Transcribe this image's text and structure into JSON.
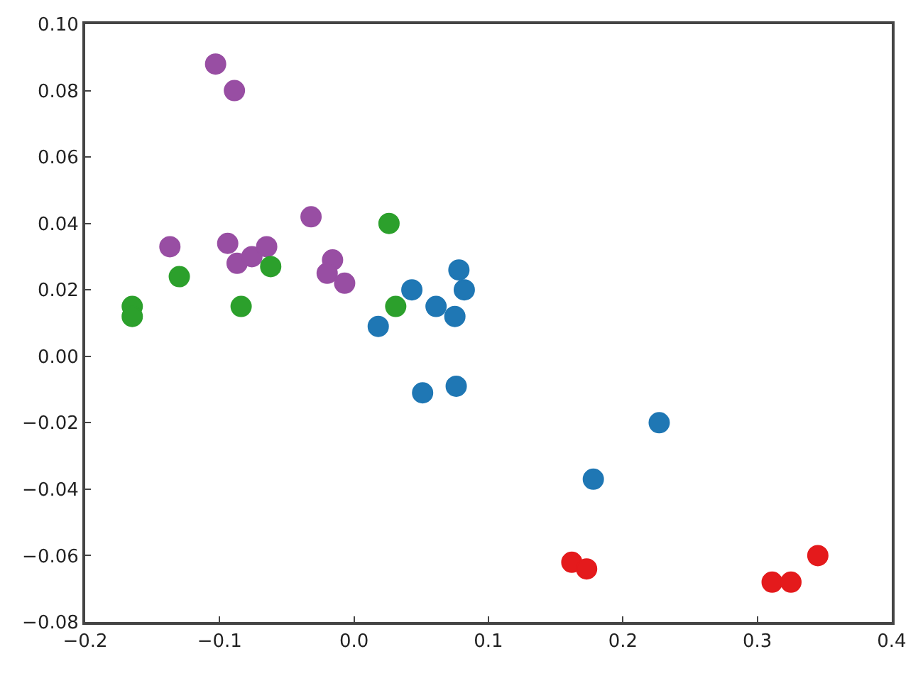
{
  "chart_data": {
    "type": "scatter",
    "marker": "circle",
    "xlim": [
      -0.2,
      0.4
    ],
    "xticks": [
      {
        "value": -0.2,
        "label": "−0.2"
      },
      {
        "value": -0.1,
        "label": "−0.1"
      },
      {
        "value": 0,
        "label": "0.0"
      },
      0.1,
      0.2,
      0.3,
      0.4
    ],
    "ylim": [
      -0.08,
      0.1
    ],
    "yticks": [
      {
        "value": -0.08,
        "label": "−0.08"
      },
      {
        "value": -0.06,
        "label": "−0.06"
      },
      {
        "value": -0.04,
        "label": "−0.04"
      },
      {
        "value": -0.02,
        "label": "−0.02"
      },
      {
        "value": 0,
        "label": "0.00"
      },
      0.02,
      0.04,
      0.06,
      0.08,
      {
        "value": 0.1,
        "label": "0.10"
      }
    ],
    "series": [
      {
        "color": "#984ea3",
        "x": [
          -0.103,
          -0.089,
          -0.137,
          -0.094,
          -0.087,
          -0.076,
          -0.065,
          -0.032,
          -0.016,
          -0.02,
          -0.007
        ],
        "values": [
          0.088,
          0.08,
          0.033,
          0.034,
          0.028,
          0.03,
          0.033,
          0.042,
          0.029,
          0.025,
          0.022
        ]
      },
      {
        "color": "#2ca02c",
        "x": [
          -0.165,
          -0.165,
          -0.13,
          -0.084,
          -0.062,
          0.026,
          0.031
        ],
        "values": [
          0.015,
          0.012,
          0.024,
          0.015,
          0.027,
          0.04,
          0.015
        ]
      },
      {
        "color": "#1f77b4",
        "x": [
          0.018,
          0.043,
          0.061,
          0.075,
          0.078,
          0.082,
          0.051,
          0.076,
          0.178,
          0.227
        ],
        "values": [
          0.009,
          0.02,
          0.015,
          0.012,
          0.026,
          0.02,
          -0.011,
          -0.009,
          -0.037,
          -0.02
        ]
      },
      {
        "color": "#e41a1c",
        "x": [
          0.162,
          0.173,
          0.311,
          0.325,
          0.345
        ],
        "values": [
          -0.062,
          -0.064,
          -0.068,
          -0.068,
          -0.06
        ]
      }
    ]
  }
}
